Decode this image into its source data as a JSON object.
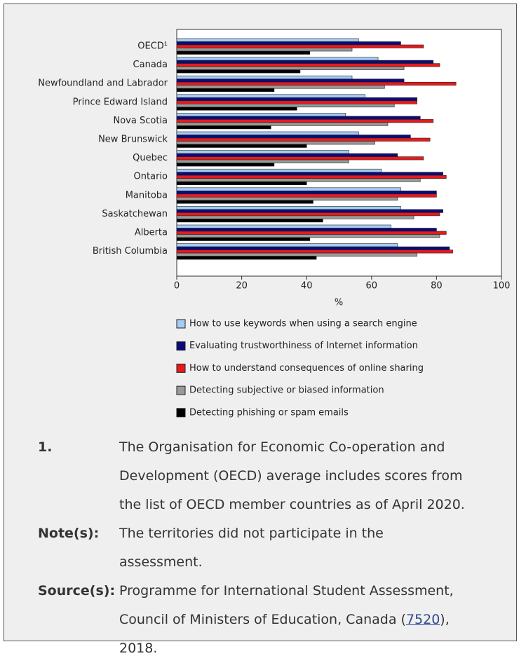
{
  "chart_data": {
    "type": "hbar",
    "categories": [
      "OECD¹",
      "Canada",
      "Newfoundland and Labrador",
      "Prince Edward Island",
      "Nova Scotia",
      "New Brunswick",
      "Quebec",
      "Ontario",
      "Manitoba",
      "Saskatchewan",
      "Alberta",
      "British Columbia"
    ],
    "series": [
      {
        "name": "How to use keywords when using a search engine",
        "color": "#a6cdf2",
        "values": [
          56,
          62,
          54,
          58,
          52,
          56,
          53,
          63,
          69,
          69,
          66,
          68
        ]
      },
      {
        "name": "Evaluating trustworthiness of Internet information",
        "color": "#0b0b78",
        "values": [
          69,
          79,
          70,
          74,
          75,
          72,
          68,
          82,
          80,
          82,
          80,
          84
        ]
      },
      {
        "name": "How to understand consequences of online sharing",
        "color": "#e8191c",
        "values": [
          76,
          81,
          86,
          74,
          79,
          78,
          76,
          83,
          80,
          81,
          83,
          85
        ]
      },
      {
        "name": "Detecting subjective or biased information",
        "color": "#9a9a9a",
        "values": [
          54,
          70,
          64,
          67,
          65,
          61,
          53,
          75,
          68,
          73,
          81,
          74
        ]
      },
      {
        "name": "Detecting phishing or spam emails",
        "color": "#000000",
        "values": [
          41,
          38,
          30,
          37,
          29,
          40,
          30,
          40,
          42,
          45,
          41,
          43
        ]
      }
    ],
    "x_label": "%",
    "xlim": [
      0,
      100
    ],
    "xticks": [
      0,
      20,
      40,
      60,
      80,
      100
    ]
  },
  "notes": {
    "footnote": {
      "label": "1.",
      "text": "The Organisation for Economic Co-operation and Development (OECD) average includes scores from the list of OECD member countries as of April 2020."
    },
    "note": {
      "label": "Note(s):",
      "text": "The territories did not participate in the assessment."
    },
    "source": {
      "label": "Source(s):",
      "text_before": "Programme for International Student Assessment, Council of Ministers of Education, Canada (",
      "link": "7520",
      "text_after": "), 2018."
    }
  }
}
